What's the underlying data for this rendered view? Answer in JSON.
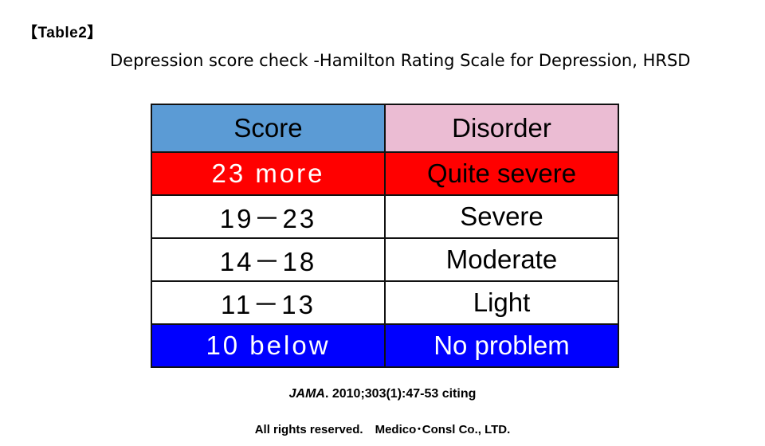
{
  "header": {
    "table_label": "【Table2】",
    "subtitle": "Depression score check -Hamilton Rating Scale for Depression, HRSD"
  },
  "table": {
    "header": {
      "score": "Score",
      "disorder": "Disorder",
      "score_bg": "#5B9BD5",
      "disorder_bg": "#EBBCD3"
    },
    "rows": [
      {
        "score": "23 more",
        "disorder": "Quite severe",
        "score_bg": "#FF0000",
        "score_color": "#FFFFFF",
        "disorder_bg": "#FF0000",
        "disorder_color": "#000000"
      },
      {
        "score": "19－23",
        "disorder": "Severe",
        "score_bg": "#FFFFFF",
        "score_color": "#000000",
        "disorder_bg": "#FFFFFF",
        "disorder_color": "#000000"
      },
      {
        "score": "14－18",
        "disorder": "Moderate",
        "score_bg": "#FFFFFF",
        "score_color": "#000000",
        "disorder_bg": "#FFFFFF",
        "disorder_color": "#000000"
      },
      {
        "score": "11－13",
        "disorder": "Light",
        "score_bg": "#FFFFFF",
        "score_color": "#000000",
        "disorder_bg": "#FFFFFF",
        "disorder_color": "#000000"
      },
      {
        "score": "10 below",
        "disorder": "No problem",
        "score_bg": "#0000FF",
        "score_color": "#FFFFFF",
        "disorder_bg": "#0000FF",
        "disorder_color": "#FFFFFF"
      }
    ]
  },
  "citation": {
    "journal": "JAMA",
    "details": ". 2010;303(1):47-53 citing"
  },
  "footer": {
    "copyright": "All rights reserved.　Medico･Consl Co., LTD."
  }
}
